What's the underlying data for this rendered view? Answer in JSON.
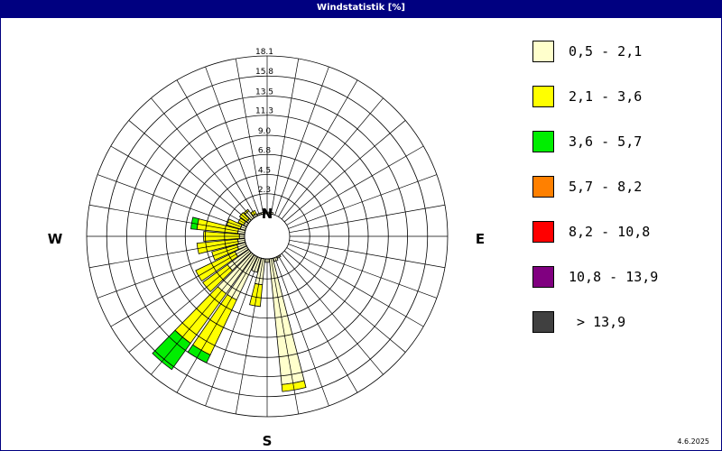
{
  "window": {
    "title": "Windstatistik [%]"
  },
  "footer": {
    "date": "4.6.2025"
  },
  "chart_data": {
    "type": "wind-rose",
    "title": "Windstatistik [%]",
    "directions": [
      {
        "label": "N",
        "angle": 0
      },
      {
        "label": "E",
        "angle": 90
      },
      {
        "label": "S",
        "angle": 180
      },
      {
        "label": "W",
        "angle": 270
      }
    ],
    "radial_ticks": [
      "2.3",
      "4.5",
      "6.8",
      "9.0",
      "11.3",
      "13.5",
      "15.8",
      "18.1"
    ],
    "rmax": 18.1,
    "sectors_count": 36,
    "legend": [
      {
        "label": "0,5 - 2,1",
        "color": "#ffffcc"
      },
      {
        "label": "2,1 - 3,6",
        "color": "#ffff00"
      },
      {
        "label": "3,6 - 5,7",
        "color": "#00ee00"
      },
      {
        "label": "5,7 - 8,2",
        "color": "#ff8000"
      },
      {
        "label": "8,2 - 10,8",
        "color": "#ff0000"
      },
      {
        "label": "10,8 - 13,9",
        "color": "#800080"
      },
      {
        "label": " > 13,9",
        "color": "#404040"
      }
    ],
    "series": [
      {
        "direction": 170,
        "values": [
          14.5,
          15.3
        ]
      },
      {
        "direction": 180,
        "values": [
          0.4
        ]
      },
      {
        "direction": 190,
        "values": [
          3.0,
          5.5
        ]
      },
      {
        "direction": 200,
        "values": [
          1.7
        ]
      },
      {
        "direction": 210,
        "values": [
          5.5,
          12.5,
          13.5
        ]
      },
      {
        "direction": 220,
        "values": [
          5.5,
          12.5,
          16.2
        ]
      },
      {
        "direction": 230,
        "values": [
          3.0,
          6.5
        ]
      },
      {
        "direction": 240,
        "values": [
          1.5,
          6.5
        ]
      },
      {
        "direction": 250,
        "values": [
          1.0,
          4.0
        ]
      },
      {
        "direction": 260,
        "values": [
          0.8,
          5.5
        ]
      },
      {
        "direction": 270,
        "values": [
          0.6,
          4.7
        ]
      },
      {
        "direction": 280,
        "values": [
          0.8,
          5.5,
          6.2
        ]
      },
      {
        "direction": 290,
        "values": [
          0.6,
          2.2
        ]
      },
      {
        "direction": 300,
        "values": [
          0.4,
          1.1
        ]
      },
      {
        "direction": 310,
        "values": [
          0.3,
          1.3
        ]
      },
      {
        "direction": 320,
        "values": [
          1.0,
          1.2
        ]
      },
      {
        "direction": 330,
        "values": [
          0.3,
          0.7
        ]
      },
      {
        "direction": 340,
        "values": [
          0.2
        ]
      },
      {
        "direction": 350,
        "values": [
          0.2
        ]
      },
      {
        "direction": 0,
        "values": [
          0.2
        ]
      },
      {
        "direction": 10,
        "values": [
          0.2
        ]
      },
      {
        "direction": 150,
        "values": [
          0.2
        ]
      },
      {
        "direction": 160,
        "values": [
          0.4
        ]
      }
    ]
  }
}
